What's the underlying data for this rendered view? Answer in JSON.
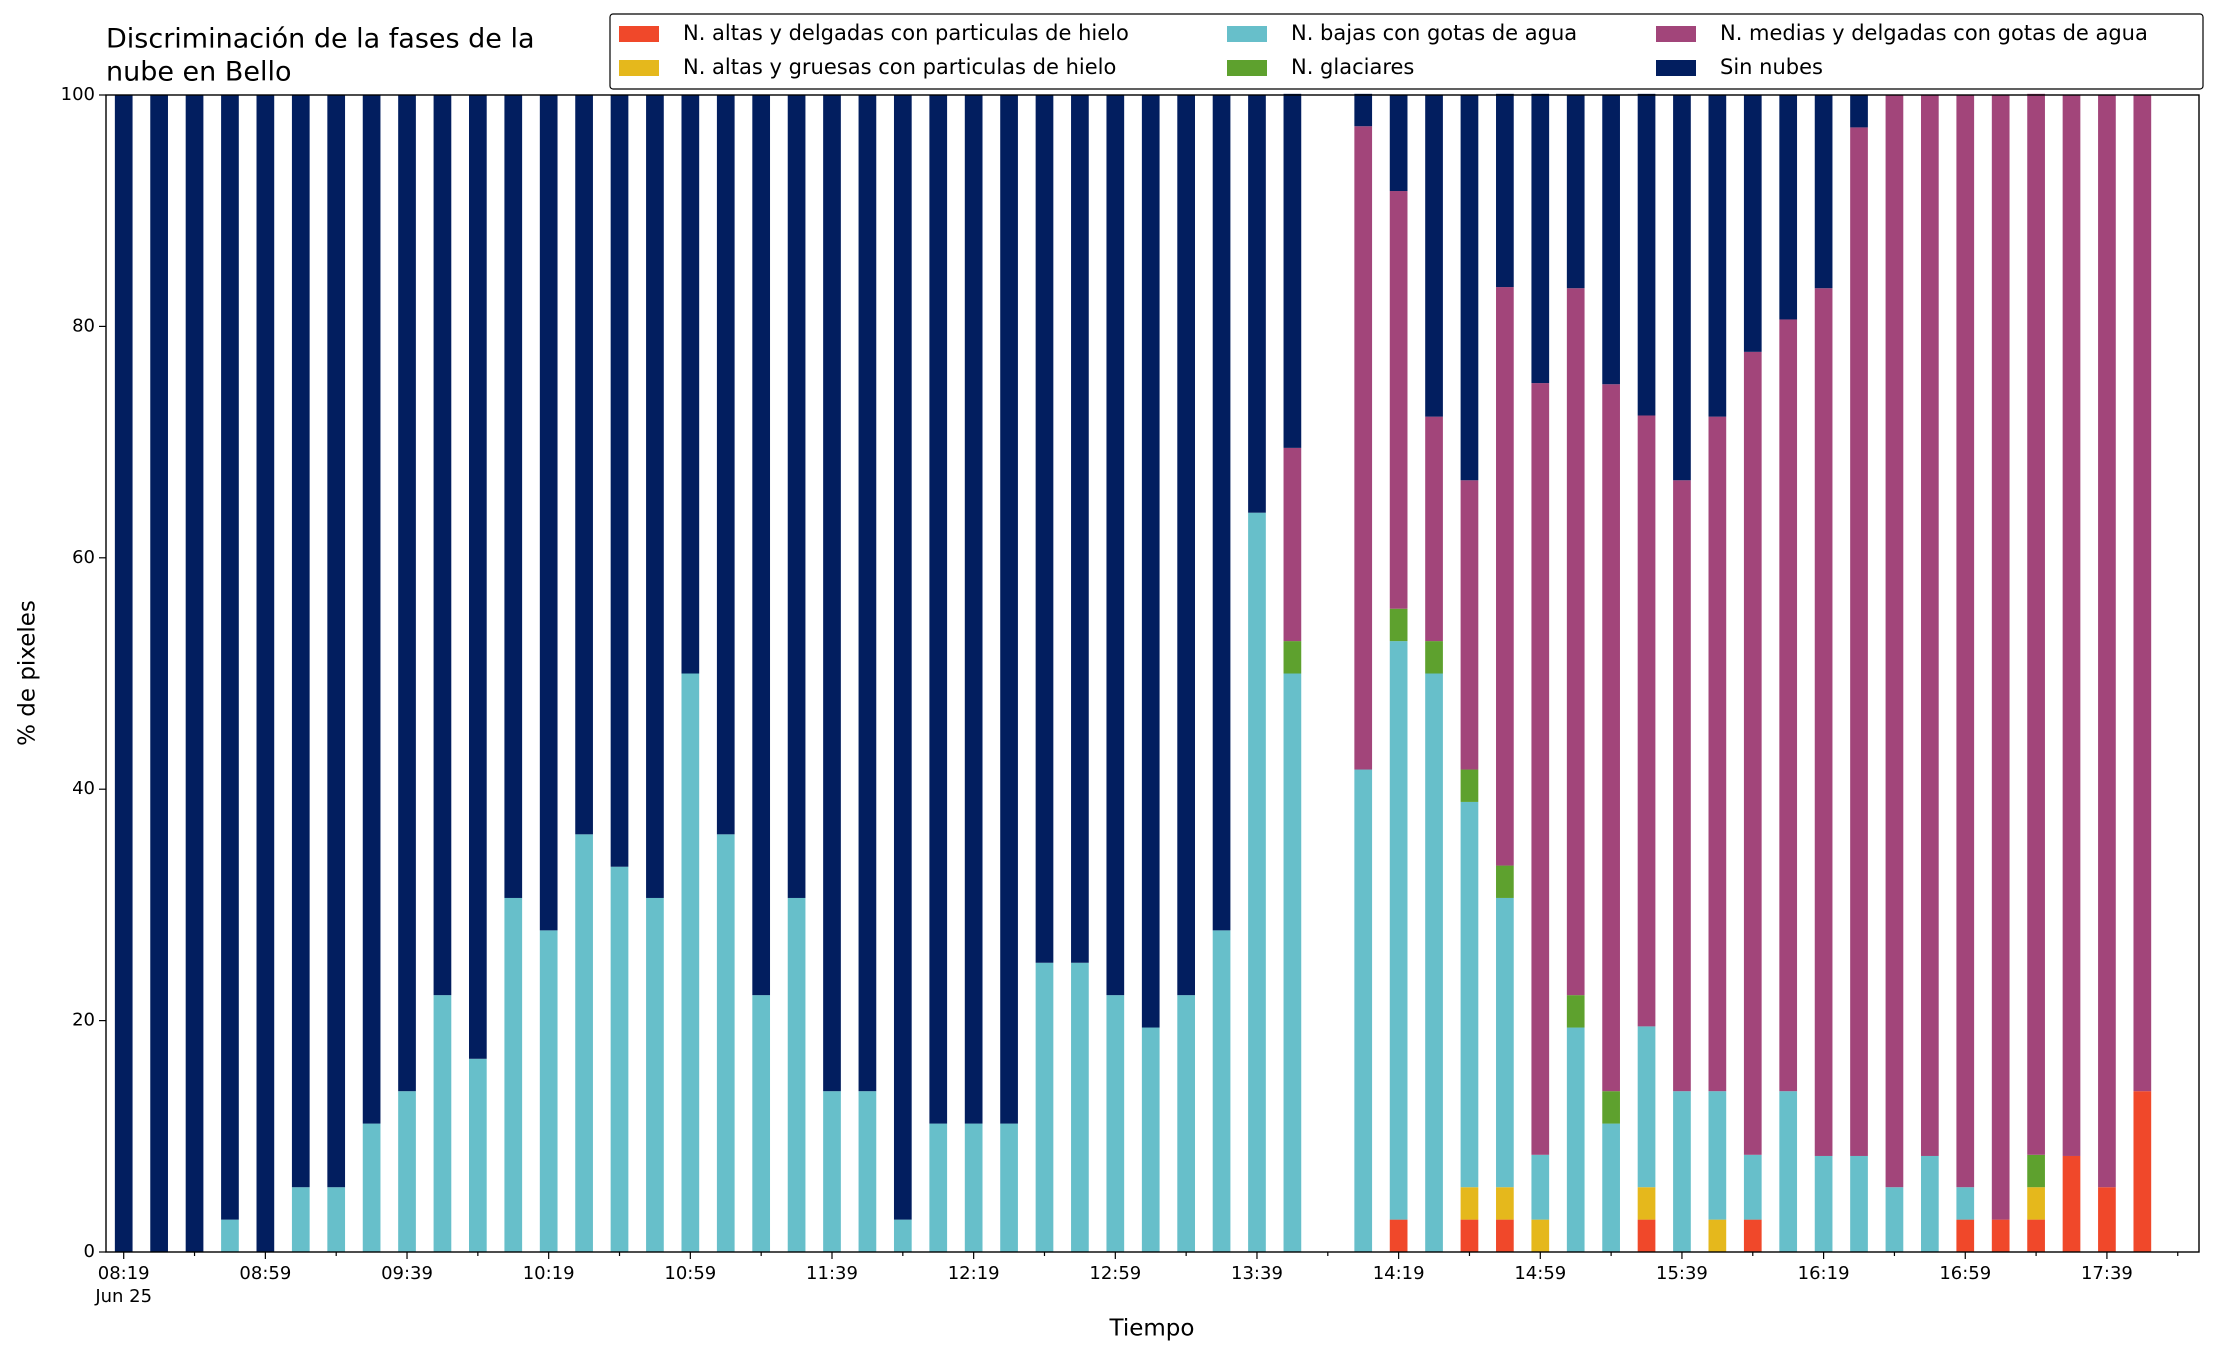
{
  "chart_data": {
    "type": "bar",
    "stacked": true,
    "title": [
      "Discriminación de la fases de la",
      "nube en Bello"
    ],
    "x_label": "Tiempo",
    "y_label": "% de pixeles",
    "x_sublabel": "Jun 25",
    "categories": [
      "08:19",
      null,
      null,
      null,
      "08:59",
      null,
      null,
      null,
      "09:39",
      null,
      null,
      null,
      "10:19",
      null,
      null,
      null,
      "10:59",
      null,
      null,
      null,
      "11:39",
      null,
      null,
      null,
      "12:19",
      null,
      null,
      null,
      "12:59",
      null,
      null,
      null,
      "13:39",
      null,
      null,
      null,
      "14:19",
      null,
      null,
      null,
      "14:59",
      null,
      null,
      null,
      "15:39",
      null,
      null,
      null,
      "16:19",
      null,
      null,
      null,
      "16:59",
      null,
      null,
      null,
      "17:39",
      null
    ],
    "ylim": [
      0,
      100
    ],
    "yticks": [
      0,
      20,
      40,
      60,
      80,
      100
    ],
    "grid": false,
    "legend": "top right",
    "series": [
      {
        "name": "N. altas y delgadas con particulas de hielo",
        "color": "#f0482a",
        "values": [
          0,
          0,
          0,
          0,
          0,
          0,
          0,
          0,
          0,
          0,
          0,
          0,
          0,
          0,
          0,
          0,
          0,
          0,
          0,
          0,
          0,
          0,
          0,
          0,
          0,
          0,
          0,
          0,
          0,
          0,
          0,
          0,
          0,
          0,
          null,
          0,
          2.8,
          0,
          2.8,
          2.8,
          0,
          0,
          0,
          2.8,
          0,
          0,
          2.8,
          0,
          0,
          0,
          0,
          0,
          2.8,
          2.8,
          2.8,
          8.3,
          5.6,
          13.9
        ]
      },
      {
        "name": "N. altas y gruesas con particulas de hielo",
        "color": "#e5b81c",
        "values": [
          0,
          0,
          0,
          0,
          0,
          0,
          0,
          0,
          0,
          0,
          0,
          0,
          0,
          0,
          0,
          0,
          0,
          0,
          0,
          0,
          0,
          0,
          0,
          0,
          0,
          0,
          0,
          0,
          0,
          0,
          0,
          0,
          0,
          0,
          null,
          0,
          0,
          0,
          2.8,
          2.8,
          2.8,
          0,
          0,
          2.8,
          0,
          2.8,
          0,
          0,
          0,
          0,
          0,
          0,
          0,
          0,
          2.8,
          0,
          0,
          0
        ]
      },
      {
        "name": "N. bajas con gotas de agua",
        "color": "#67bfca",
        "values": [
          0,
          0,
          0,
          2.8,
          0,
          5.6,
          5.6,
          11.1,
          13.9,
          22.2,
          16.7,
          30.6,
          27.8,
          36.1,
          33.3,
          30.6,
          50,
          36.1,
          22.2,
          30.6,
          13.9,
          13.9,
          2.8,
          11.1,
          11.1,
          11.1,
          25,
          25,
          22.2,
          19.4,
          22.2,
          27.8,
          63.9,
          50,
          null,
          41.7,
          50,
          50,
          33.3,
          25,
          5.6,
          19.4,
          11.1,
          13.9,
          13.9,
          11.1,
          5.6,
          13.9,
          8.3,
          8.3,
          5.6,
          8.3,
          2.8,
          0,
          0,
          0,
          0,
          0
        ]
      },
      {
        "name": "N. glaciares",
        "color": "#5ea12e",
        "values": [
          0,
          0,
          0,
          0,
          0,
          0,
          0,
          0,
          0,
          0,
          0,
          0,
          0,
          0,
          0,
          0,
          0,
          0,
          0,
          0,
          0,
          0,
          0,
          0,
          0,
          0,
          0,
          0,
          0,
          0,
          0,
          0,
          0,
          2.8,
          null,
          0,
          2.8,
          2.8,
          2.8,
          2.8,
          0,
          2.8,
          2.8,
          0,
          0,
          0,
          0,
          0,
          0,
          0,
          0,
          0,
          0,
          0,
          2.8,
          0,
          0,
          0
        ]
      },
      {
        "name": "N. medias y delgadas con gotas de agua",
        "color": "#a2457a",
        "values": [
          0,
          0,
          0,
          0,
          0,
          0,
          0,
          0,
          0,
          0,
          0,
          0,
          0,
          0,
          0,
          0,
          0,
          0,
          0,
          0,
          0,
          0,
          0,
          0,
          0,
          0,
          0,
          0,
          0,
          0,
          0,
          0,
          0,
          16.7,
          null,
          55.6,
          36.1,
          19.4,
          25,
          50,
          66.7,
          61.1,
          61.1,
          52.8,
          52.8,
          58.3,
          69.4,
          66.7,
          75,
          88.9,
          94.4,
          91.7,
          94.4,
          97.2,
          91.7,
          91.7,
          94.4,
          86.1
        ]
      },
      {
        "name": "Sin nubes",
        "color": "#021e5f",
        "values": [
          100,
          100,
          100,
          97.2,
          100,
          94.4,
          94.4,
          88.9,
          86.1,
          77.8,
          83.3,
          69.4,
          72.2,
          63.9,
          66.7,
          69.4,
          50,
          63.9,
          77.8,
          69.4,
          86.1,
          86.1,
          97.2,
          88.9,
          88.9,
          88.9,
          75,
          75,
          77.8,
          80.6,
          77.8,
          72.2,
          36.1,
          30.6,
          null,
          2.8,
          8.3,
          27.8,
          33.3,
          16.7,
          25,
          16.7,
          25,
          27.8,
          33.3,
          27.8,
          22.2,
          19.4,
          16.7,
          2.8,
          0,
          0,
          0,
          0,
          0,
          0,
          0,
          0
        ]
      }
    ]
  }
}
